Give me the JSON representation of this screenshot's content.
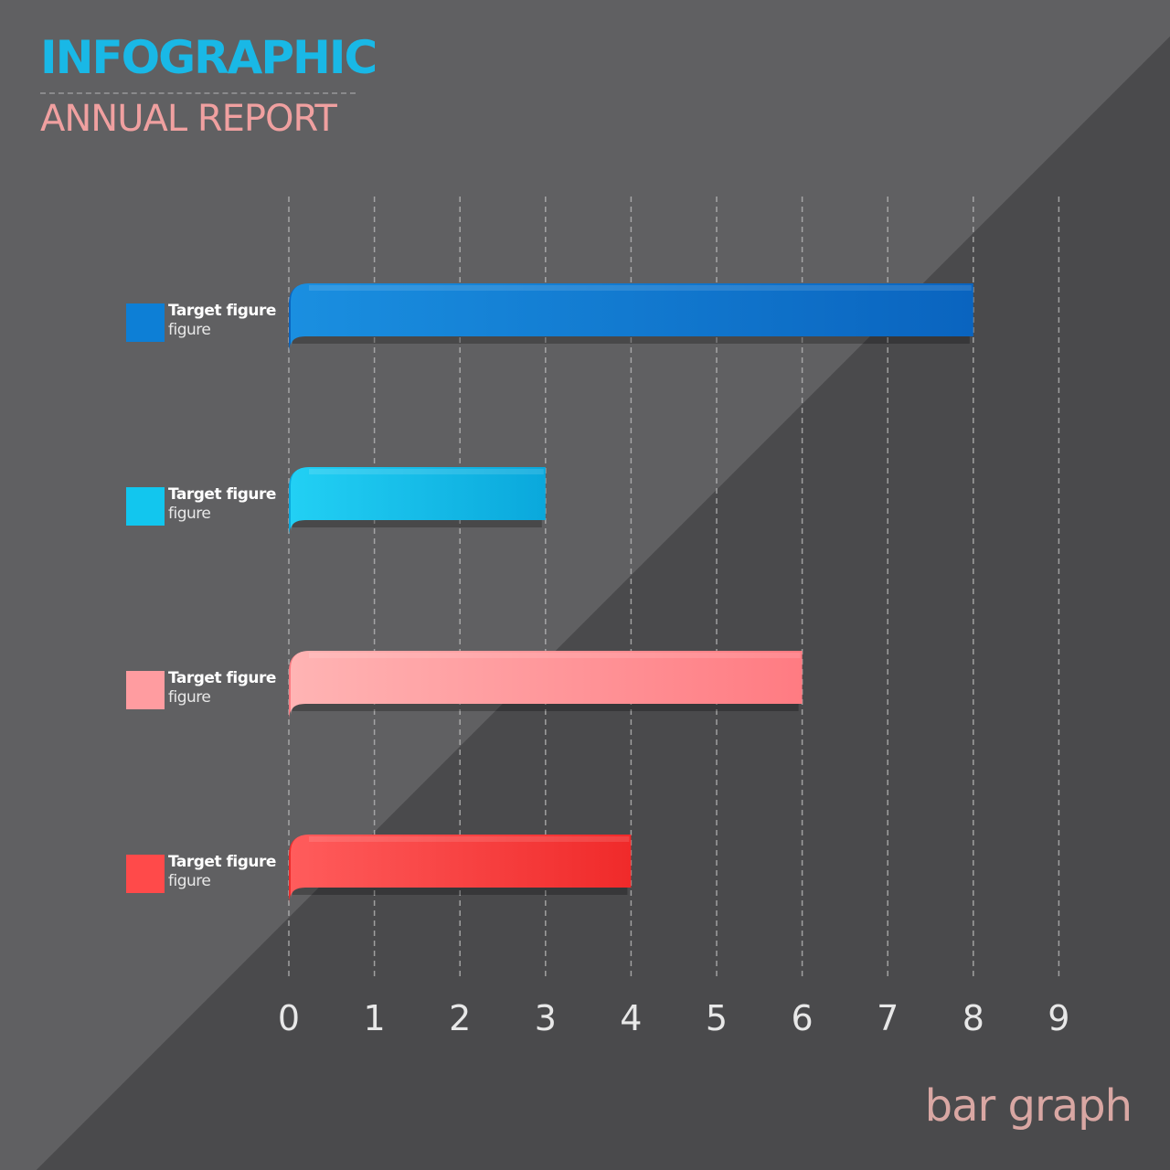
{
  "header": {
    "title": "INFOGRAPHIC",
    "subtitle": "ANNUAL REPORT"
  },
  "footer": {
    "label": "bar graph"
  },
  "colors": {
    "background": "#3c3c3e",
    "title": "#19b8e6",
    "subtitle": "#f0a0a0",
    "footer": "#d9a7a3",
    "grid": "#bdbdbd"
  },
  "chart_data": {
    "type": "bar",
    "orientation": "horizontal",
    "categories": [
      "Target figure figure",
      "Target figure figure",
      "Target figure figure",
      "Target figure figure"
    ],
    "values": [
      8,
      3,
      6,
      4
    ],
    "series": [
      {
        "label_line1": "Target figure",
        "label_line2": "figure",
        "value": 8,
        "color": "#0d7fd6",
        "color_light": "#1a8fe0",
        "color_dark": "#0a64bf"
      },
      {
        "label_line1": "Target figure",
        "label_line2": "figure",
        "value": 3,
        "color": "#12c6ee",
        "color_light": "#22d0f4",
        "color_dark": "#0aa8dc"
      },
      {
        "label_line1": "Target figure",
        "label_line2": "figure",
        "value": 6,
        "color": "#ff9ca0",
        "color_light": "#ffb4b4",
        "color_dark": "#ff7b82"
      },
      {
        "label_line1": "Target figure",
        "label_line2": "figure",
        "value": 4,
        "color": "#ff4a4a",
        "color_light": "#ff5c5c",
        "color_dark": "#f02a2a"
      }
    ],
    "xlim": [
      0,
      9
    ],
    "x_ticks": [
      "0",
      "1",
      "2",
      "3",
      "4",
      "5",
      "6",
      "7",
      "8",
      "9"
    ],
    "grid": true,
    "legend": "left",
    "title": "",
    "xlabel": "",
    "ylabel": ""
  }
}
